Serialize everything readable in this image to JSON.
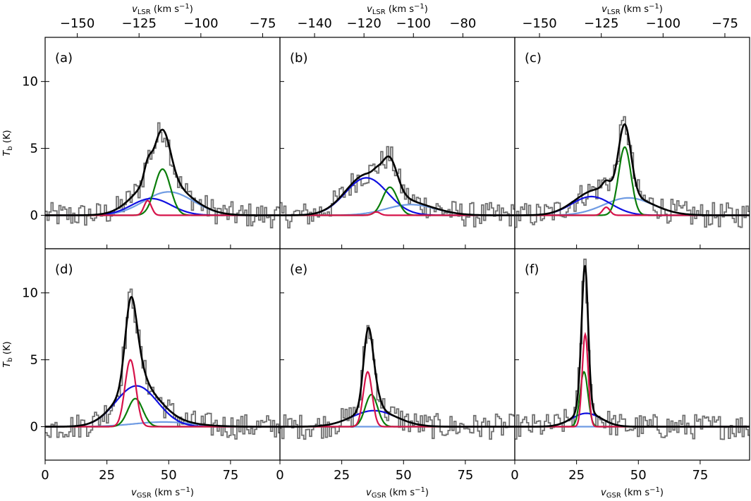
{
  "chart_data": {
    "type": "line",
    "title": "",
    "layout": "2 rows x 3 columns of spectra panels",
    "ylabel": "T_b (K)",
    "ylabel_main": "T",
    "ylabel_sub": "b",
    "ylabel_unit": "(K)",
    "xlabel_bottom": "v_GSR (km s^-1)",
    "xlabel_bottom_main": "v",
    "xlabel_bottom_sub": "GSR",
    "xlabel_top": "v_LSR (km s^-1)",
    "xlabel_top_main": "v",
    "xlabel_top_sub": "LSR",
    "xlabel_unit_prefix": "(km s",
    "xlabel_unit_sup": "−1",
    "xlabel_unit_suffix": ")",
    "xlim": [
      0,
      95
    ],
    "ylim": [
      -2.5,
      13.3
    ],
    "yticks": [
      0,
      5,
      10
    ],
    "ytick_labels": [
      "0",
      "5",
      "10"
    ],
    "xticks_bottom": [
      0,
      25,
      50,
      75
    ],
    "xtick_labels_bottom": [
      "0",
      "25",
      "50",
      "75"
    ],
    "series_colors": {
      "data": "#707070",
      "total": "#000000",
      "red": "#d6134a",
      "green": "#0a7d0a",
      "blue": "#1010e0",
      "lightblue": "#6f9be3"
    },
    "panels": [
      {
        "label": "(a)",
        "lsr_offset": -163,
        "top_ticks": [
          -150,
          -125,
          -100,
          -75
        ],
        "top_tick_labels": [
          "−150",
          "−125",
          "−100",
          "−75"
        ],
        "components": {
          "red": {
            "amp": 1.1,
            "center": 41.5,
            "sigma": 1.5
          },
          "green": {
            "amp": 3.45,
            "center": 47.5,
            "sigma": 3.2
          },
          "blue": {
            "amp": 1.25,
            "center": 43,
            "sigma": 8
          },
          "lightblue": {
            "amp": 1.75,
            "center": 50,
            "sigma": 10
          }
        },
        "peak_total": 6.4
      },
      {
        "label": "(b)",
        "lsr_offset": -154,
        "top_ticks": [
          -140,
          -120,
          -100,
          -80
        ],
        "top_tick_labels": [
          "−140",
          "−120",
          "−100",
          "−80"
        ],
        "components": {
          "red": {
            "amp": 0.25,
            "center": 39,
            "sigma": 1.5
          },
          "green": {
            "amp": 2.1,
            "center": 44.5,
            "sigma": 3
          },
          "blue": {
            "amp": 2.8,
            "center": 35,
            "sigma": 8.5
          },
          "lightblue": {
            "amp": 0.8,
            "center": 53,
            "sigma": 10
          }
        },
        "peak_total": 4.4
      },
      {
        "label": "(c)",
        "lsr_offset": -160,
        "top_ticks": [
          -150,
          -125,
          -100,
          -75
        ],
        "top_tick_labels": [
          "−150",
          "−125",
          "−100",
          "−75"
        ],
        "components": {
          "red": {
            "amp": 0.6,
            "center": 37,
            "sigma": 1.5
          },
          "green": {
            "amp": 5.1,
            "center": 44.5,
            "sigma": 2.5
          },
          "blue": {
            "amp": 1.4,
            "center": 31,
            "sigma": 8
          },
          "lightblue": {
            "amp": 1.3,
            "center": 46,
            "sigma": 10
          }
        },
        "peak_total": 6.8
      },
      {
        "label": "(d)",
        "lsr_offset": -163,
        "top_ticks": [
          -150,
          -125,
          -100,
          -75
        ],
        "top_tick_labels": [
          "−150",
          "−125",
          "−100",
          "−75"
        ],
        "components": {
          "red": {
            "amp": 5.0,
            "center": 34.5,
            "sigma": 2.2
          },
          "green": {
            "amp": 2.1,
            "center": 36.5,
            "sigma": 3
          },
          "blue": {
            "amp": 3.05,
            "center": 37,
            "sigma": 8.5
          },
          "lightblue": {
            "amp": 0.35,
            "center": 48,
            "sigma": 12
          }
        },
        "peak_total": 9.7
      },
      {
        "label": "(e)",
        "lsr_offset": -154,
        "top_ticks": [
          -140,
          -120,
          -100,
          -80
        ],
        "top_tick_labels": [
          "−140",
          "−120",
          "−100",
          "−80"
        ],
        "components": {
          "red": {
            "amp": 4.1,
            "center": 35.5,
            "sigma": 1.8
          },
          "green": {
            "amp": 2.4,
            "center": 37,
            "sigma": 2.5
          },
          "blue": {
            "amp": 1.2,
            "center": 38,
            "sigma": 9
          },
          "lightblue": {
            "amp": 0.0,
            "center": 40,
            "sigma": 10
          }
        },
        "peak_total": 7.4
      },
      {
        "label": "(f)",
        "lsr_offset": -160,
        "top_ticks": [
          -150,
          -125,
          -100,
          -75
        ],
        "top_tick_labels": [
          "−150",
          "−125",
          "−100",
          "−75"
        ],
        "components": {
          "red": {
            "amp": 6.9,
            "center": 28.5,
            "sigma": 1.2
          },
          "green": {
            "amp": 4.1,
            "center": 28,
            "sigma": 1.6
          },
          "blue": {
            "amp": 1.0,
            "center": 29,
            "sigma": 6
          },
          "lightblue": {
            "amp": 0.0,
            "center": 40,
            "sigma": 10
          }
        },
        "peak_total": 12.0
      }
    ]
  }
}
